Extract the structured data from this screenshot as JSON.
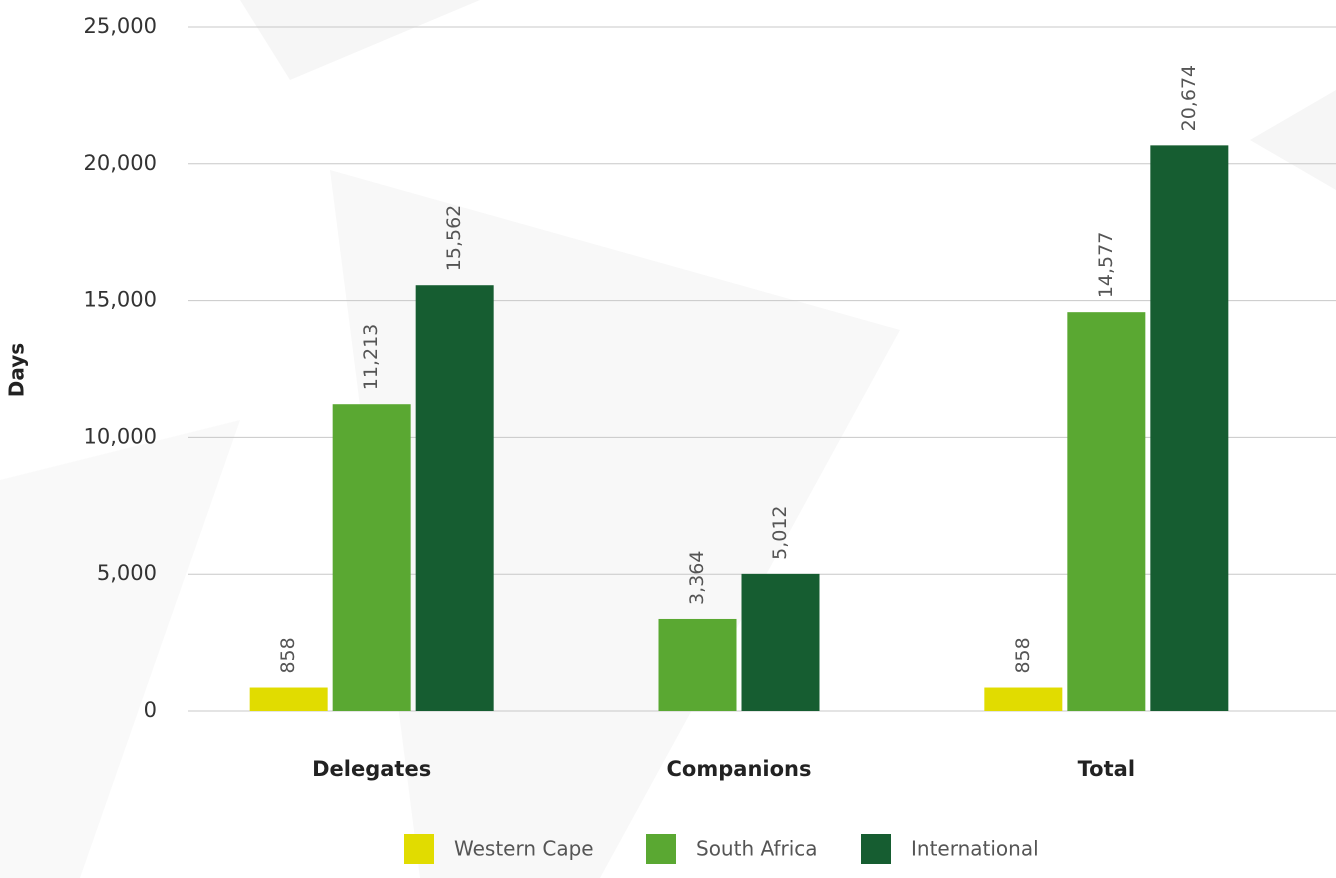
{
  "chart_data": {
    "type": "bar",
    "y_label": "Days",
    "categories": [
      "Delegates",
      "Companions",
      "Total"
    ],
    "series": [
      {
        "name": "Western Cape",
        "color": "#e1dc00",
        "values": [
          858,
          null,
          858
        ],
        "value_labels": [
          "858",
          null,
          "858"
        ]
      },
      {
        "name": "South Africa",
        "color": "#5aa832",
        "values": [
          11213,
          3364,
          14577
        ],
        "value_labels": [
          "11,213",
          "3,364",
          "14,577"
        ]
      },
      {
        "name": "International",
        "color": "#165d31",
        "values": [
          15562,
          5012,
          20674
        ],
        "value_labels": [
          "15,562",
          "5,012",
          "20,674"
        ]
      }
    ],
    "ylim": [
      0,
      25000
    ],
    "yticks": [
      0,
      {
        "value": 5000,
        "label": "5,000"
      },
      {
        "value": 10000,
        "label": "10,000"
      },
      {
        "value": 15000,
        "label": "15,000"
      },
      {
        "value": 20000,
        "label": "20,000"
      },
      {
        "value": 25000,
        "label": "25,000"
      }
    ],
    "grid": true,
    "legend": "bottom"
  }
}
